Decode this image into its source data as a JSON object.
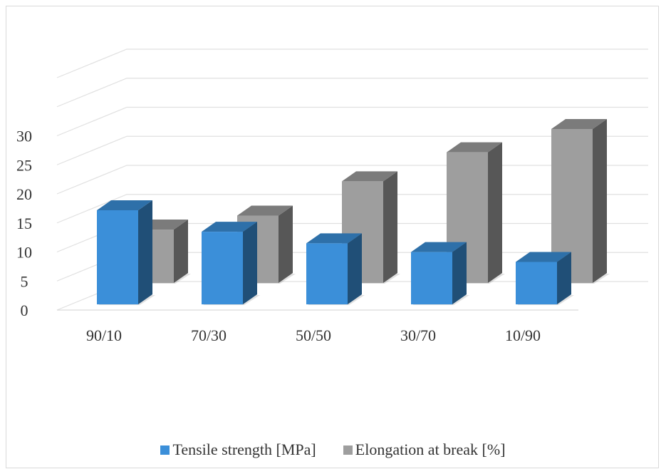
{
  "chart_data": {
    "type": "bar",
    "three_d": true,
    "categories": [
      "90/10",
      "70/30",
      "50/50",
      "30/70",
      "10/90"
    ],
    "series": [
      {
        "name": "Tensile strength [MPa]",
        "values": [
          16.2,
          12.5,
          10.5,
          9.0,
          7.3
        ],
        "color": "#3b8fd9"
      },
      {
        "name": "Elongation at break [%]",
        "values": [
          9.2,
          11.6,
          17.5,
          22.5,
          26.5
        ],
        "color": "#9e9e9e"
      }
    ],
    "y_ticks": [
      "0",
      "5",
      "10",
      "15",
      "20",
      "25",
      "30"
    ],
    "ylim": [
      0,
      30
    ],
    "grid": true,
    "legend_position": "bottom"
  }
}
